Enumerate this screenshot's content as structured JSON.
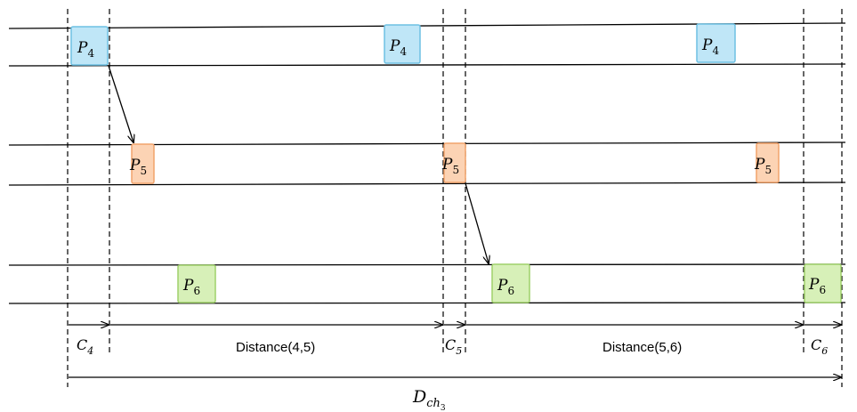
{
  "colors": {
    "p4_fill": "#bfe6f7",
    "p4_stroke": "#6ec1e4",
    "p5_fill": "#fcd3b4",
    "p5_stroke": "#f2a36b",
    "p6_fill": "#d7f0b8",
    "p6_stroke": "#9fd16a"
  },
  "tasks": {
    "p4": {
      "main": "P",
      "sub": "4"
    },
    "p5": {
      "main": "P",
      "sub": "5"
    },
    "p6": {
      "main": "P",
      "sub": "6"
    }
  },
  "markers": {
    "c4": {
      "main": "C",
      "sub": "4"
    },
    "c5": {
      "main": "C",
      "sub": "5"
    },
    "c6": {
      "main": "C",
      "sub": "6"
    }
  },
  "distances": {
    "d45": "Distance(4,5)",
    "d56": "Distance(5,6)"
  },
  "total": {
    "main": "D",
    "sub": "ch",
    "subsub": "3"
  }
}
